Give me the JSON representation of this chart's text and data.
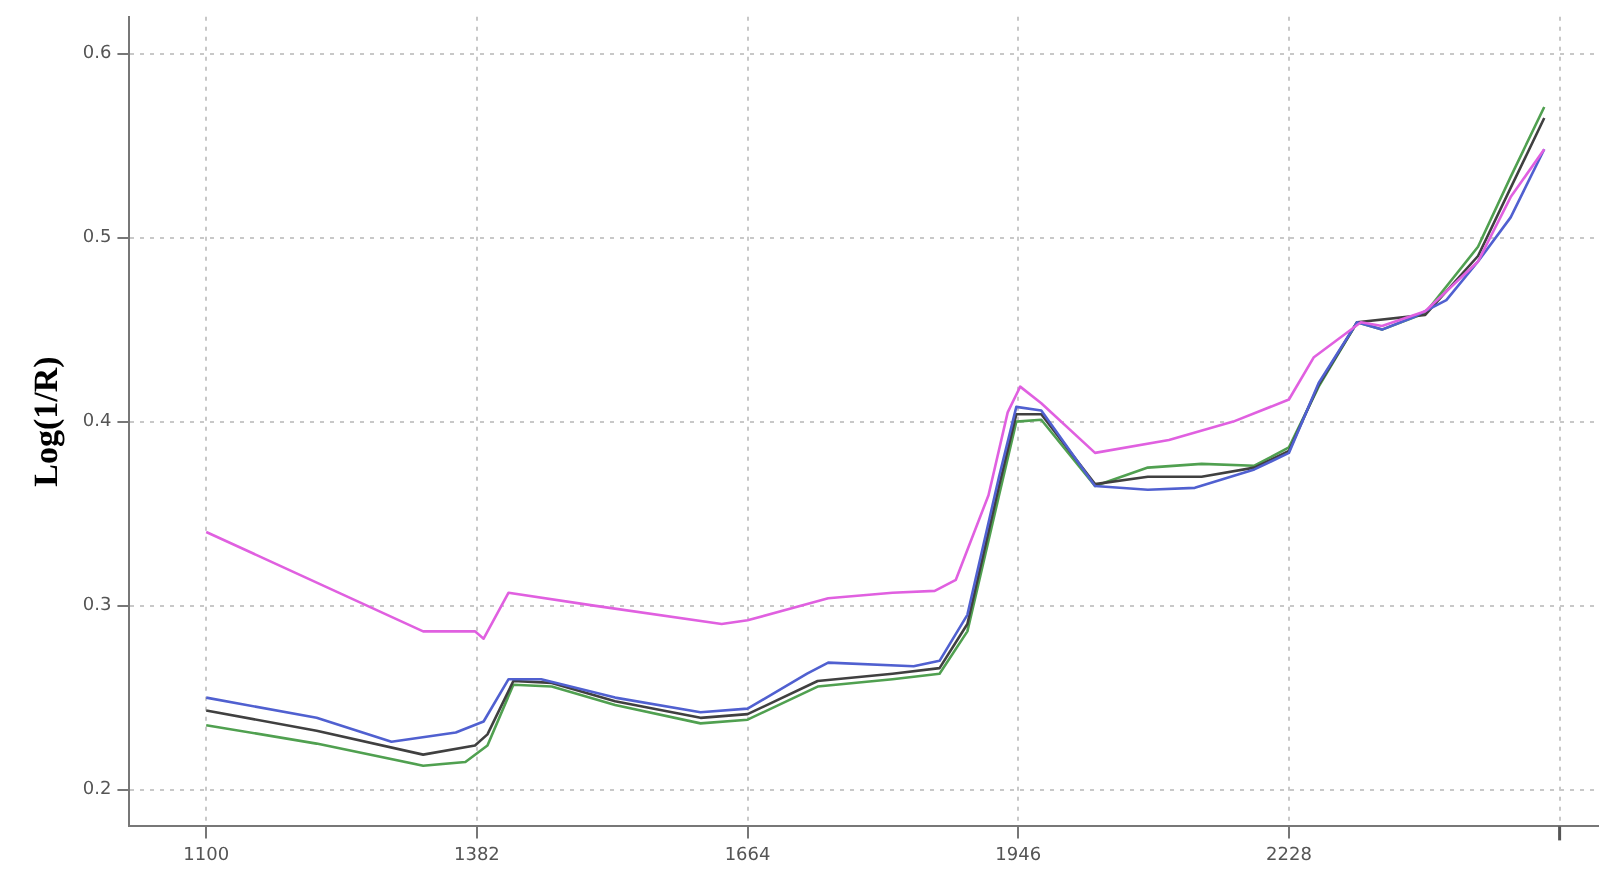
{
  "chart_data": {
    "type": "line",
    "ylabel": "Log(1/R)",
    "xlim": [
      1020,
      2550
    ],
    "ylim": [
      0.18,
      0.62
    ],
    "xticks": [
      1100,
      1382,
      1664,
      1946,
      2228,
      {
        "value": 2510,
        "label": null
      }
    ],
    "yticks": [
      0.2,
      0.3,
      0.4,
      0.5,
      0.6
    ],
    "grid": true,
    "legend": false,
    "marker": "none",
    "line_style": "solid",
    "series": [
      {
        "color": "#e060e0",
        "x": [
          1100,
          1326,
          1380,
          1389,
          1415,
          1504,
          1637,
          1664,
          1748,
          1815,
          1859,
          1881,
          1915,
          1935,
          1948,
          1970,
          2026,
          2103,
          2170,
          2228,
          2254,
          2303,
          2325,
          2370,
          2425,
          2459,
          2494
        ],
        "values": [
          0.34,
          0.286,
          0.286,
          0.282,
          0.307,
          0.3,
          0.29,
          0.292,
          0.304,
          0.307,
          0.308,
          0.314,
          0.36,
          0.405,
          0.419,
          0.41,
          0.383,
          0.39,
          0.4,
          0.412,
          0.435,
          0.454,
          0.452,
          0.46,
          0.487,
          0.522,
          0.548
        ]
      },
      {
        "color": "#5060d0",
        "x": [
          1100,
          1215,
          1293,
          1360,
          1389,
          1415,
          1449,
          1526,
          1615,
          1664,
          1726,
          1748,
          1837,
          1864,
          1893,
          1926,
          1944,
          1970,
          2026,
          2081,
          2130,
          2192,
          2228,
          2259,
          2299,
          2325,
          2359,
          2392,
          2425,
          2459,
          2494
        ],
        "values": [
          0.25,
          0.239,
          0.226,
          0.231,
          0.237,
          0.26,
          0.26,
          0.25,
          0.242,
          0.244,
          0.263,
          0.269,
          0.267,
          0.27,
          0.295,
          0.37,
          0.408,
          0.406,
          0.365,
          0.363,
          0.364,
          0.374,
          0.383,
          0.421,
          0.454,
          0.45,
          0.457,
          0.466,
          0.487,
          0.511,
          0.548
        ]
      },
      {
        "color": "#404040",
        "x": [
          1100,
          1215,
          1326,
          1380,
          1393,
          1420,
          1460,
          1526,
          1615,
          1664,
          1737,
          1815,
          1864,
          1893,
          1926,
          1944,
          1970,
          2026,
          2081,
          2137,
          2192,
          2228,
          2259,
          2299,
          2370,
          2425,
          2459,
          2494
        ],
        "values": [
          0.243,
          0.232,
          0.219,
          0.224,
          0.23,
          0.259,
          0.258,
          0.248,
          0.239,
          0.241,
          0.259,
          0.263,
          0.266,
          0.29,
          0.365,
          0.404,
          0.404,
          0.366,
          0.37,
          0.37,
          0.375,
          0.384,
          0.42,
          0.454,
          0.458,
          0.49,
          0.527,
          0.565
        ]
      },
      {
        "color": "#50a050",
        "x": [
          1100,
          1215,
          1326,
          1370,
          1393,
          1420,
          1460,
          1526,
          1615,
          1664,
          1737,
          1815,
          1864,
          1893,
          1926,
          1944,
          1970,
          2026,
          2081,
          2137,
          2192,
          2228,
          2259,
          2299,
          2325,
          2370,
          2425,
          2459,
          2494
        ],
        "values": [
          0.235,
          0.225,
          0.213,
          0.215,
          0.224,
          0.257,
          0.256,
          0.246,
          0.236,
          0.238,
          0.256,
          0.26,
          0.263,
          0.286,
          0.36,
          0.4,
          0.401,
          0.365,
          0.375,
          0.377,
          0.376,
          0.386,
          0.419,
          0.454,
          0.45,
          0.459,
          0.495,
          0.533,
          0.571
        ]
      }
    ]
  }
}
